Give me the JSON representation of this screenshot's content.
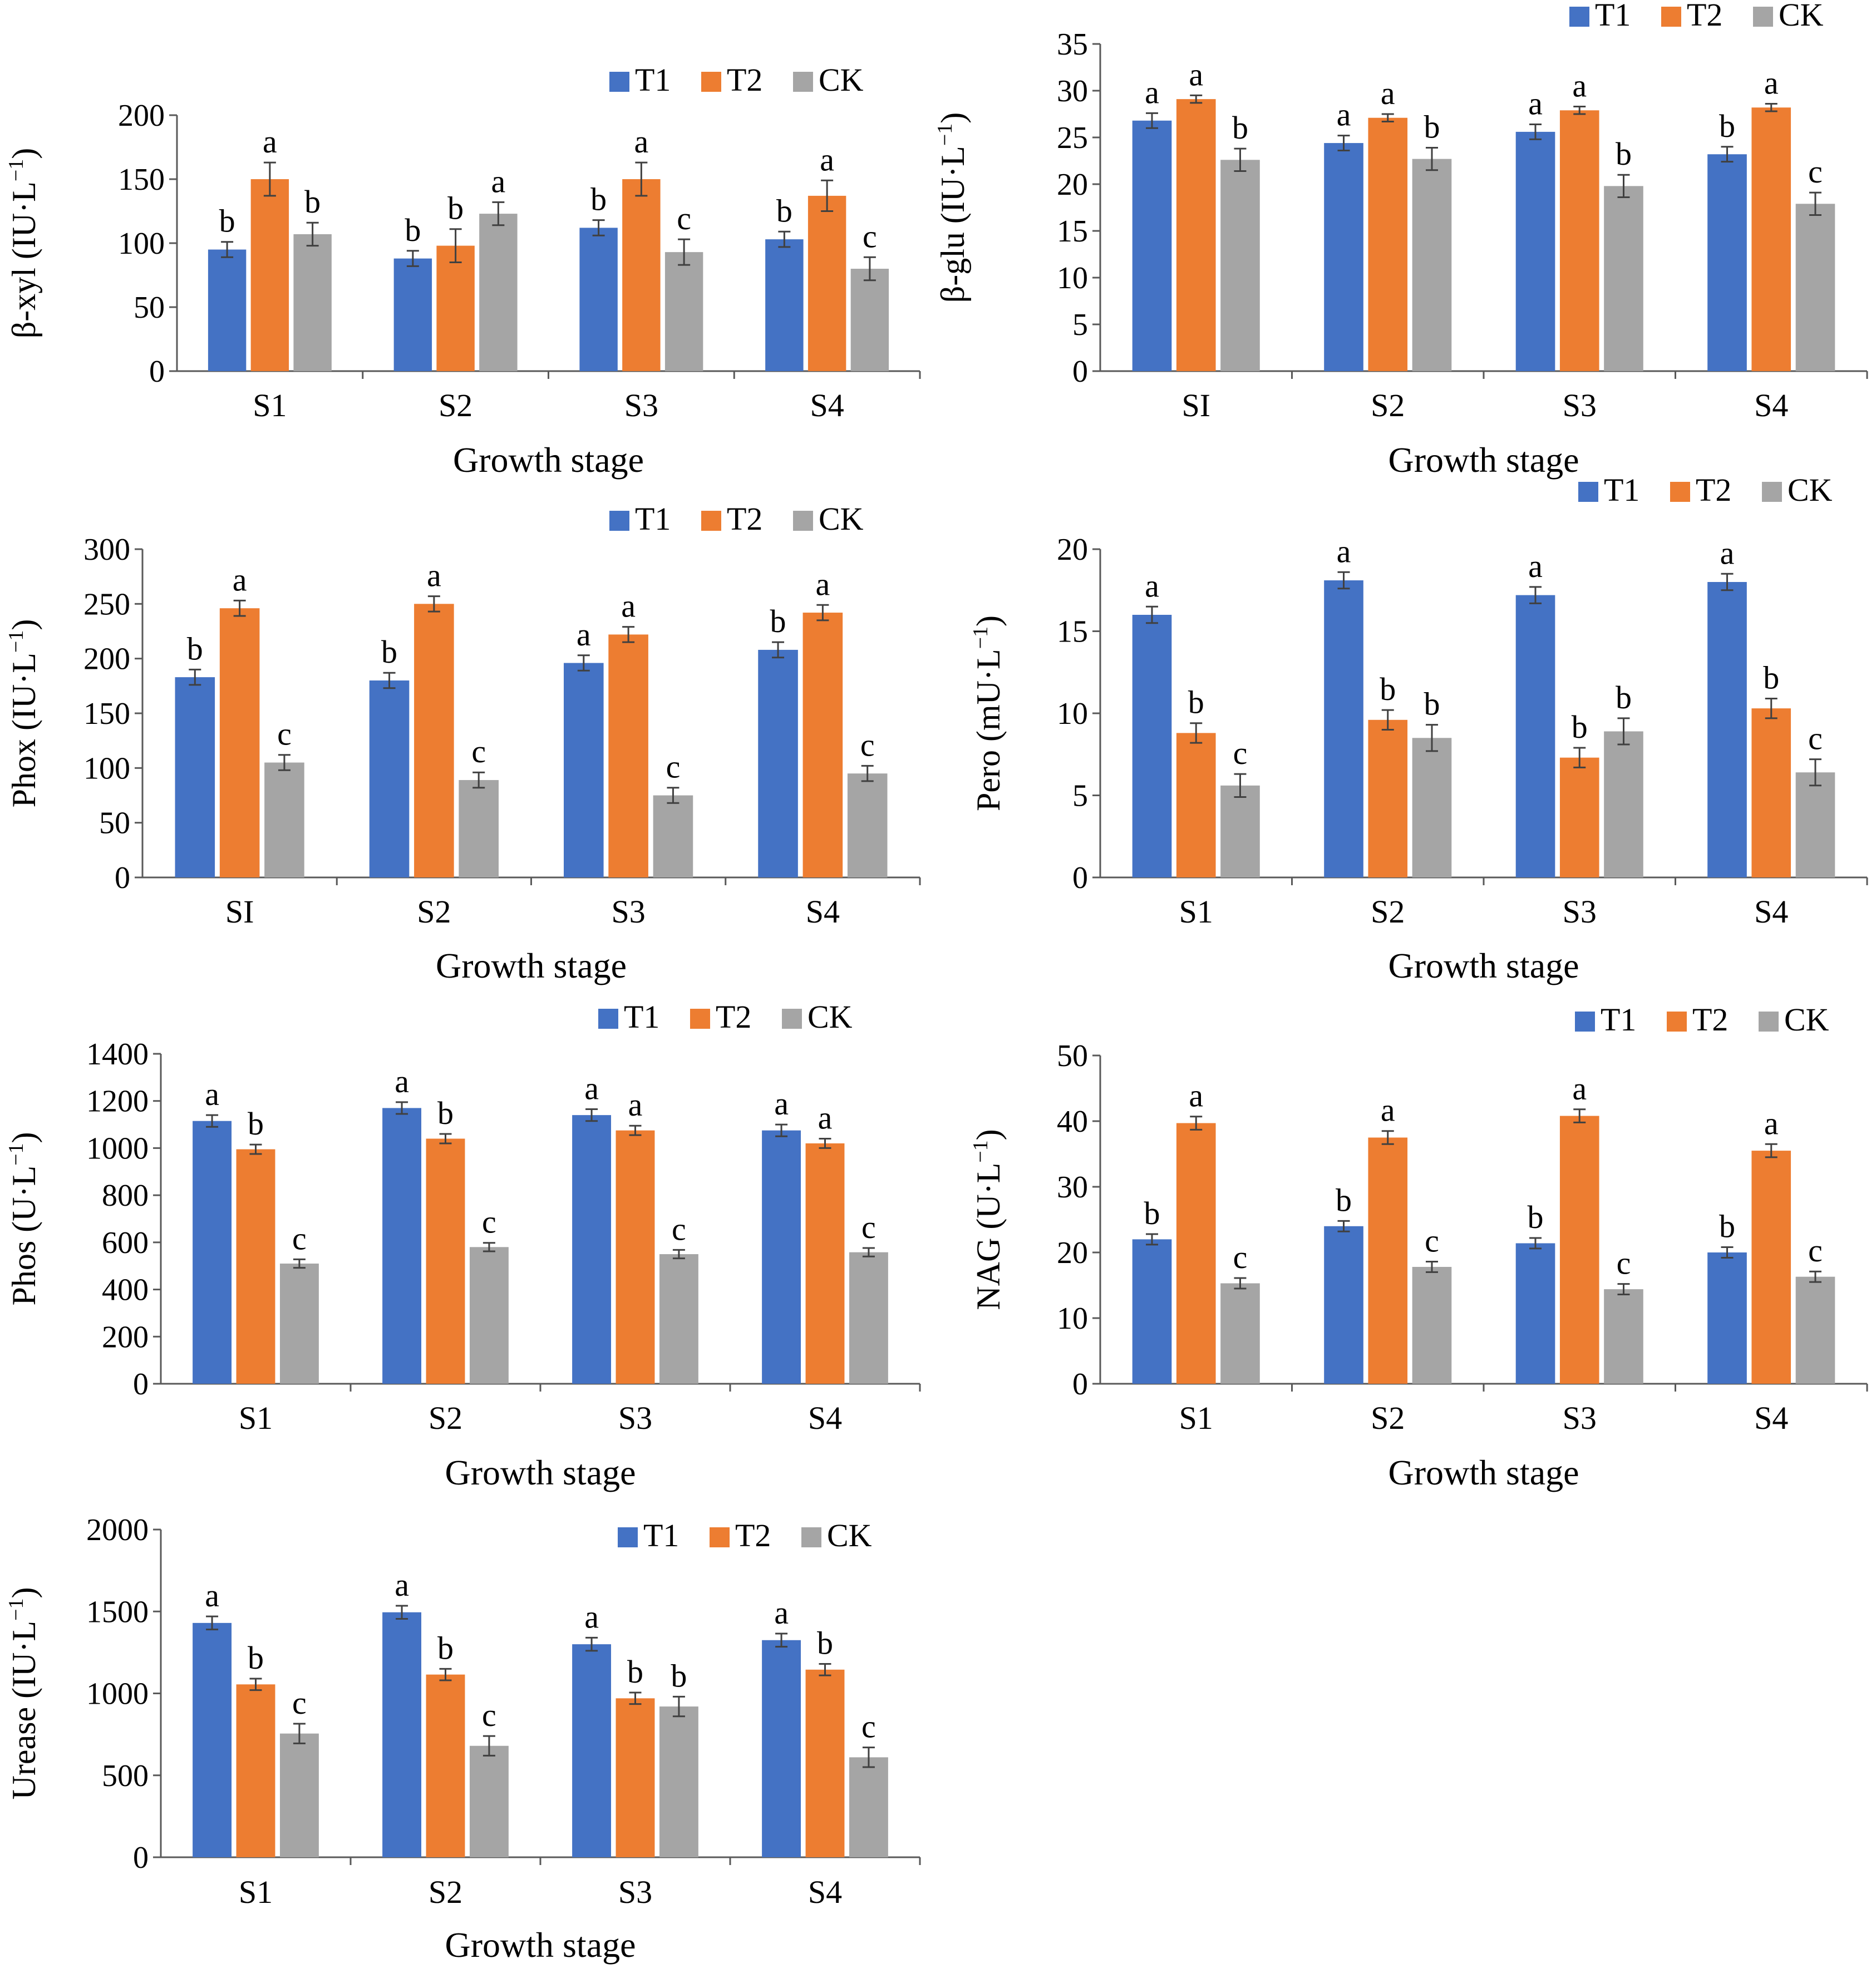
{
  "colors": {
    "T1": "#4472C4",
    "T2": "#ED7D31",
    "CK": "#A5A5A5",
    "axis": "#595959",
    "error": "#404040"
  },
  "legend": [
    "T1",
    "T2",
    "CK"
  ],
  "chart_data": [
    {
      "type": "bar",
      "title": "",
      "xlabel": "Growth stage",
      "ylabel": "β-xyl (IU·L",
      "ylabel_sup": "−1",
      "ylabel_end": ")",
      "ylim": [
        0,
        200
      ],
      "yticks": [
        0,
        50,
        100,
        150,
        200
      ],
      "categories": [
        "S1",
        "S2",
        "S3",
        "S4"
      ],
      "series": [
        {
          "name": "T1",
          "values": [
            95,
            88,
            112,
            103
          ],
          "errors": [
            6,
            6,
            6,
            6
          ],
          "sig": [
            "b",
            "b",
            "b",
            "b"
          ]
        },
        {
          "name": "T2",
          "values": [
            150,
            98,
            150,
            137
          ],
          "errors": [
            13,
            13,
            13,
            12
          ],
          "sig": [
            "a",
            "b",
            "a",
            "a"
          ]
        },
        {
          "name": "CK",
          "values": [
            107,
            123,
            93,
            80
          ],
          "errors": [
            9,
            9,
            10,
            9
          ],
          "sig": [
            "b",
            "a",
            "c",
            "c"
          ]
        }
      ]
    },
    {
      "type": "bar",
      "title": "",
      "xlabel": "Growth stage",
      "ylabel": "β-glu (IU·L",
      "ylabel_sup": "−1",
      "ylabel_end": ")",
      "ylim": [
        0,
        35
      ],
      "yticks": [
        0,
        5,
        10,
        15,
        20,
        25,
        30,
        35
      ],
      "categories": [
        "SI",
        "S2",
        "S3",
        "S4"
      ],
      "series": [
        {
          "name": "T1",
          "values": [
            26.8,
            24.4,
            25.6,
            23.2
          ],
          "errors": [
            0.8,
            0.8,
            0.8,
            0.8
          ],
          "sig": [
            "a",
            "a",
            "a",
            "b"
          ]
        },
        {
          "name": "T2",
          "values": [
            29.1,
            27.1,
            27.9,
            28.2
          ],
          "errors": [
            0.4,
            0.4,
            0.4,
            0.4
          ],
          "sig": [
            "a",
            "a",
            "a",
            "a"
          ]
        },
        {
          "name": "CK",
          "values": [
            22.6,
            22.7,
            19.8,
            17.9
          ],
          "errors": [
            1.2,
            1.2,
            1.2,
            1.2
          ],
          "sig": [
            "b",
            "b",
            "b",
            "c"
          ]
        }
      ]
    },
    {
      "type": "bar",
      "title": "",
      "xlabel": "Growth stage",
      "ylabel": "Phox (IU·L",
      "ylabel_sup": "−1",
      "ylabel_end": ")",
      "ylim": [
        0,
        300
      ],
      "yticks": [
        0,
        50,
        100,
        150,
        200,
        250,
        300
      ],
      "categories": [
        "SI",
        "S2",
        "S3",
        "S4"
      ],
      "series": [
        {
          "name": "T1",
          "values": [
            183,
            180,
            196,
            208
          ],
          "errors": [
            7,
            7,
            7,
            7
          ],
          "sig": [
            "b",
            "b",
            "a",
            "b"
          ]
        },
        {
          "name": "T2",
          "values": [
            246,
            250,
            222,
            242
          ],
          "errors": [
            7,
            7,
            7,
            7
          ],
          "sig": [
            "a",
            "a",
            "a",
            "a"
          ]
        },
        {
          "name": "CK",
          "values": [
            105,
            89,
            75,
            95
          ],
          "errors": [
            7,
            7,
            7,
            7
          ],
          "sig": [
            "c",
            "c",
            "c",
            "c"
          ]
        }
      ]
    },
    {
      "type": "bar",
      "title": "",
      "xlabel": "Growth stage",
      "ylabel": "Pero (mU·L",
      "ylabel_sup": "−1",
      "ylabel_end": ")",
      "ylim": [
        0,
        20
      ],
      "yticks": [
        0,
        5,
        10,
        15,
        20
      ],
      "categories": [
        "S1",
        "S2",
        "S3",
        "S4"
      ],
      "series": [
        {
          "name": "T1",
          "values": [
            16.0,
            18.1,
            17.2,
            18.0
          ],
          "errors": [
            0.5,
            0.5,
            0.5,
            0.5
          ],
          "sig": [
            "a",
            "a",
            "a",
            "a"
          ]
        },
        {
          "name": "T2",
          "values": [
            8.8,
            9.6,
            7.3,
            10.3
          ],
          "errors": [
            0.6,
            0.6,
            0.6,
            0.6
          ],
          "sig": [
            "b",
            "b",
            "b",
            "b"
          ]
        },
        {
          "name": "CK",
          "values": [
            5.6,
            8.5,
            8.9,
            6.4
          ],
          "errors": [
            0.7,
            0.8,
            0.8,
            0.8
          ],
          "sig": [
            "c",
            "b",
            "b",
            "c"
          ]
        }
      ]
    },
    {
      "type": "bar",
      "title": "",
      "xlabel": "Growth stage",
      "ylabel": "Phos (U·L",
      "ylabel_sup": "−1",
      "ylabel_end": ")",
      "ylim": [
        0,
        1400
      ],
      "yticks": [
        0,
        200,
        400,
        600,
        800,
        1000,
        1200,
        1400
      ],
      "categories": [
        "S1",
        "S2",
        "S3",
        "S4"
      ],
      "series": [
        {
          "name": "T1",
          "values": [
            1115,
            1170,
            1140,
            1075
          ],
          "errors": [
            25,
            25,
            25,
            25
          ],
          "sig": [
            "a",
            "a",
            "a",
            "a"
          ]
        },
        {
          "name": "T2",
          "values": [
            995,
            1040,
            1075,
            1020
          ],
          "errors": [
            20,
            20,
            20,
            20
          ],
          "sig": [
            "b",
            "b",
            "a",
            "a"
          ]
        },
        {
          "name": "CK",
          "values": [
            510,
            580,
            550,
            558
          ],
          "errors": [
            18,
            18,
            18,
            18
          ],
          "sig": [
            "c",
            "c",
            "c",
            "c"
          ]
        }
      ]
    },
    {
      "type": "bar",
      "title": "",
      "xlabel": "Growth stage",
      "ylabel": "NAG (U·L",
      "ylabel_sup": "−1",
      "ylabel_end": ")",
      "ylim": [
        0,
        50
      ],
      "yticks": [
        0,
        10,
        20,
        30,
        40,
        50
      ],
      "categories": [
        "S1",
        "S2",
        "S3",
        "S4"
      ],
      "series": [
        {
          "name": "T1",
          "values": [
            22.0,
            24.0,
            21.4,
            20.0
          ],
          "errors": [
            0.8,
            0.8,
            0.8,
            0.8
          ],
          "sig": [
            "b",
            "b",
            "b",
            "b"
          ]
        },
        {
          "name": "T2",
          "values": [
            39.7,
            37.5,
            40.8,
            35.5
          ],
          "errors": [
            1.0,
            1.0,
            1.0,
            1.0
          ],
          "sig": [
            "a",
            "a",
            "a",
            "a"
          ]
        },
        {
          "name": "CK",
          "values": [
            15.3,
            17.8,
            14.4,
            16.3
          ],
          "errors": [
            0.8,
            0.8,
            0.8,
            0.8
          ],
          "sig": [
            "c",
            "c",
            "c",
            "c"
          ]
        }
      ]
    },
    {
      "type": "bar",
      "title": "",
      "xlabel": "Growth stage",
      "ylabel": "Urease (IU·L",
      "ylabel_sup": "−1",
      "ylabel_end": ")",
      "ylim": [
        0,
        2000
      ],
      "yticks": [
        0,
        500,
        1000,
        1500,
        2000
      ],
      "categories": [
        "S1",
        "S2",
        "S3",
        "S4"
      ],
      "series": [
        {
          "name": "T1",
          "values": [
            1430,
            1495,
            1300,
            1325
          ],
          "errors": [
            40,
            40,
            40,
            40
          ],
          "sig": [
            "a",
            "a",
            "a",
            "a"
          ]
        },
        {
          "name": "T2",
          "values": [
            1055,
            1115,
            970,
            1145
          ],
          "errors": [
            35,
            35,
            35,
            35
          ],
          "sig": [
            "b",
            "b",
            "b",
            "b"
          ]
        },
        {
          "name": "CK",
          "values": [
            755,
            680,
            920,
            610
          ],
          "errors": [
            60,
            60,
            60,
            60
          ],
          "sig": [
            "c",
            "c",
            "b",
            "c"
          ]
        }
      ]
    }
  ]
}
